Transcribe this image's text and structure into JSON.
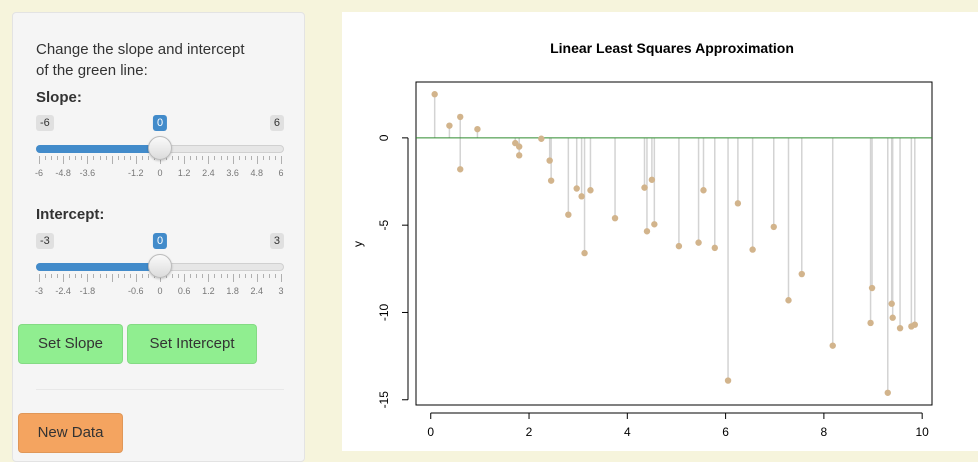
{
  "sidebar": {
    "help_text_line1": "Change the slope and intercept",
    "help_text_line2": "of the green line:",
    "slope": {
      "label": "Slope:",
      "min_label": "-6",
      "max_label": "6",
      "value_label": "0",
      "min": -6,
      "max": 6,
      "value": 0,
      "tick_labels": [
        "-6",
        "-4.8",
        "-3.6",
        "-1.2",
        "0",
        "1.2",
        "2.4",
        "3.6",
        "4.8",
        "6"
      ]
    },
    "intercept": {
      "label": "Intercept:",
      "min_label": "-3",
      "max_label": "3",
      "value_label": "0",
      "min": -3,
      "max": 3,
      "value": 0,
      "tick_labels": [
        "-3",
        "-2.4",
        "-1.8",
        "-0.6",
        "0",
        "0.6",
        "1.2",
        "1.8",
        "2.4",
        "3"
      ]
    },
    "buttons": {
      "set_slope": "Set Slope",
      "set_intercept": "Set Intercept",
      "new_data": "New Data"
    }
  },
  "colors": {
    "point": "#d2b48c",
    "segment": "#d3d3d3",
    "fit_line": "#2e8b2e",
    "slider_fill": "#428bca",
    "btn_green": "#90ee90",
    "btn_orange": "#f4a460"
  },
  "chart_data": {
    "type": "scatter",
    "title": "Linear Least Squares Approximation",
    "xlabel": "",
    "ylabel": "y",
    "xlim": [
      -0.3,
      10.2
    ],
    "ylim": [
      -15.3,
      3.2
    ],
    "x_ticks": [
      0,
      2,
      4,
      6,
      8,
      10
    ],
    "y_ticks": [
      0,
      -5,
      -10,
      -15
    ],
    "line": {
      "slope": 0,
      "intercept": 0
    },
    "points": [
      [
        0.08,
        2.5
      ],
      [
        0.38,
        0.7
      ],
      [
        0.6,
        1.2
      ],
      [
        0.6,
        -1.8
      ],
      [
        0.95,
        0.5
      ],
      [
        1.72,
        -0.3
      ],
      [
        1.8,
        -0.5
      ],
      [
        1.8,
        -1.0
      ],
      [
        2.25,
        -0.05
      ],
      [
        2.42,
        -1.3
      ],
      [
        2.45,
        -2.45
      ],
      [
        2.8,
        -4.4
      ],
      [
        2.97,
        -2.9
      ],
      [
        3.07,
        -3.35
      ],
      [
        3.13,
        -6.6
      ],
      [
        3.25,
        -3.0
      ],
      [
        3.75,
        -4.6
      ],
      [
        4.35,
        -2.85
      ],
      [
        4.4,
        -5.35
      ],
      [
        4.5,
        -2.4
      ],
      [
        4.55,
        -4.95
      ],
      [
        5.05,
        -6.2
      ],
      [
        5.45,
        -6.0
      ],
      [
        5.55,
        -3.0
      ],
      [
        5.78,
        -6.3
      ],
      [
        6.05,
        -13.9
      ],
      [
        6.25,
        -3.75
      ],
      [
        6.55,
        -6.4
      ],
      [
        6.98,
        -5.1
      ],
      [
        7.28,
        -9.3
      ],
      [
        7.55,
        -7.8
      ],
      [
        8.18,
        -11.9
      ],
      [
        8.95,
        -10.6
      ],
      [
        8.98,
        -8.6
      ],
      [
        9.3,
        -14.6
      ],
      [
        9.38,
        -9.5
      ],
      [
        9.4,
        -10.3
      ],
      [
        9.55,
        -10.9
      ],
      [
        9.78,
        -10.8
      ],
      [
        9.85,
        -10.7
      ]
    ]
  }
}
